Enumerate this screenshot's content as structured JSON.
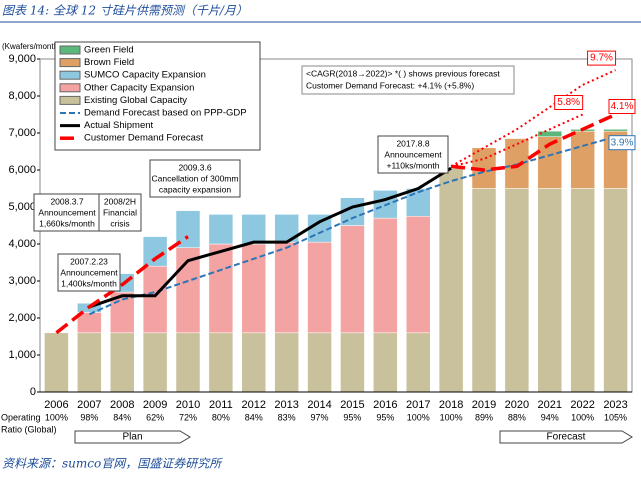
{
  "header": {
    "title": "图表 14: 全球 12 寸硅片供需预测（千片/月）",
    "source": "资料来源：sumco官网，国盛证券研究所"
  },
  "chart_data": {
    "type": "bar",
    "stacked": true,
    "ylabel": "(Kwafers/month)",
    "categories": [
      "2006",
      "2007",
      "2008",
      "2009",
      "2010",
      "2011",
      "2012",
      "2013",
      "2014",
      "2015",
      "2016",
      "2017",
      "2018",
      "2019",
      "2020",
      "2021",
      "2022",
      "2023"
    ],
    "ylim": [
      0,
      9000
    ],
    "yticks": [
      0,
      {
        "value": 1000,
        "label": "1,000"
      },
      {
        "value": 2000,
        "label": "2,000"
      },
      {
        "value": 3000,
        "label": "3,000"
      },
      {
        "value": 4000,
        "label": "4,000"
      },
      {
        "value": 5000,
        "label": "5,000"
      },
      {
        "value": 6000,
        "label": "6,000"
      },
      {
        "value": 7000,
        "label": "7,000"
      },
      {
        "value": 8000,
        "label": "8,000"
      },
      {
        "value": 9000,
        "label": "9,000"
      }
    ],
    "series": [
      {
        "name": "Existing Global Capacity",
        "color": "#c9c19c",
        "values": [
          1600,
          1600,
          1600,
          1600,
          1600,
          1600,
          1600,
          1600,
          1600,
          1600,
          1600,
          1600,
          6050,
          5500,
          5500,
          5500,
          5500,
          5500
        ]
      },
      {
        "name": "Other Capacity Expansion",
        "color": "#f4a3a3",
        "values": [
          0,
          550,
          1100,
          1800,
          2300,
          2400,
          2400,
          2450,
          2450,
          2900,
          3100,
          3150,
          0,
          0,
          0,
          0,
          0,
          0
        ]
      },
      {
        "name": "SUMCO Capacity Expansion",
        "color": "#8ec8e0",
        "values": [
          0,
          250,
          500,
          800,
          1000,
          800,
          800,
          750,
          750,
          750,
          750,
          750,
          0,
          0,
          0,
          0,
          0,
          0
        ]
      },
      {
        "name": "Brown Field",
        "color": "#dfa065",
        "values": [
          0,
          0,
          0,
          0,
          0,
          0,
          0,
          0,
          0,
          0,
          0,
          0,
          0,
          1100,
          1350,
          1400,
          1550,
          1550
        ]
      },
      {
        "name": "Green Field",
        "color": "#5cb87a",
        "values": [
          0,
          0,
          0,
          0,
          0,
          0,
          0,
          0,
          0,
          0,
          0,
          0,
          0,
          0,
          0,
          150,
          50,
          50
        ]
      }
    ],
    "lines": [
      {
        "name": "Demand Forecast based on PPP-GDP",
        "color": "#2e75b6",
        "dash": "6,3",
        "width": 2,
        "values": [
          null,
          2100,
          2500,
          2700,
          3000,
          3300,
          3600,
          3900,
          4300,
          4700,
          5050,
          5400,
          5700,
          5950,
          6150,
          6400,
          6650,
          6900
        ]
      },
      {
        "name": "Actual Shipment",
        "color": "#000000",
        "dash": "",
        "width": 3,
        "values": [
          null,
          2300,
          2600,
          2600,
          3550,
          3800,
          4050,
          4050,
          4600,
          5000,
          5200,
          5500,
          6050,
          null,
          null,
          null,
          null,
          null
        ]
      },
      {
        "name": "Customer Demand Forecast",
        "color": "#ff0000",
        "dash": "14,6",
        "width": 3.5,
        "values": [
          1600,
          2300,
          2900,
          3600,
          4200,
          null,
          null,
          null,
          null,
          null,
          null,
          null,
          6100,
          6000,
          6100,
          6700,
          7100,
          7500
        ]
      }
    ],
    "projections": [
      {
        "label": "9.7%",
        "color": "#ff0000",
        "values": [
          null,
          null,
          null,
          null,
          null,
          null,
          null,
          null,
          null,
          null,
          null,
          null,
          6100,
          6600,
          7100,
          7700,
          8300,
          8700
        ]
      },
      {
        "label": "5.8%",
        "color": "#ff0000",
        "values": [
          null,
          null,
          null,
          null,
          null,
          null,
          null,
          null,
          null,
          null,
          null,
          null,
          6100,
          6300,
          6700,
          7100,
          7500,
          null
        ]
      }
    ],
    "end_labels": [
      {
        "text": "4.1%",
        "color": "#ff0000"
      },
      {
        "text": "3.9%",
        "color": "#2e75b6"
      }
    ],
    "cagr_note": [
      "<CAGR(2018→2022)> *(  ) shows previous forecast",
      "Customer Demand Forecast: +4.1% (+5.8%)"
    ],
    "annotations": [
      {
        "lines": [
          "2007.2.23",
          "Announcement",
          "1,400ks/month"
        ]
      },
      {
        "lines": [
          "2008.3.7",
          "Announcement",
          "1,660ks/month"
        ]
      },
      {
        "lines": [
          "2008/2H",
          "Financial",
          "crisis"
        ]
      },
      {
        "lines": [
          "2009.3.6",
          "Cancellation of 300mm",
          "capacity expansion"
        ]
      },
      {
        "lines": [
          "2017.8.8",
          "Announcement",
          "+110ks/month"
        ]
      }
    ],
    "operating_label": [
      "Operating",
      "Ratio (Global)"
    ],
    "operating_ratio": [
      100,
      98,
      84,
      62,
      72,
      80,
      84,
      83,
      97,
      95,
      95,
      100,
      100,
      89,
      88,
      94,
      100,
      105
    ],
    "operating_ratio_labels": [
      "100%",
      "98%",
      "84%",
      "62%",
      "72%",
      "80%",
      "84%",
      "83%",
      "97%",
      "95%",
      "95%",
      "100%",
      "100%",
      "89%",
      "88%",
      "94%",
      "100%",
      "105%"
    ],
    "phases": [
      "Plan",
      "Forecast"
    ]
  }
}
